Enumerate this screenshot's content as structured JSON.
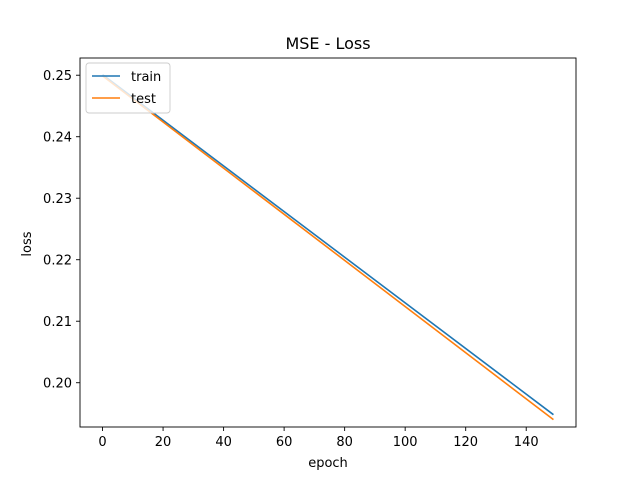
{
  "chart_data": {
    "type": "line",
    "title": "MSE - Loss",
    "xlabel": "epoch",
    "ylabel": "loss",
    "xlim": [
      -7.45,
      156.45
    ],
    "ylim": [
      0.1928,
      0.2528
    ],
    "xticks": [
      0,
      20,
      40,
      60,
      80,
      100,
      120,
      140
    ],
    "yticks": [
      0.2,
      0.21,
      0.22,
      0.23,
      0.24,
      0.25
    ],
    "ytick_labels": [
      "0.20",
      "0.21",
      "0.22",
      "0.23",
      "0.24",
      "0.25"
    ],
    "grid": false,
    "legend_position": "upper left",
    "series": [
      {
        "name": "train",
        "color": "#1f77b4",
        "x": [
          0,
          149
        ],
        "y": [
          0.2501,
          0.1948
        ]
      },
      {
        "name": "test",
        "color": "#ff7f0e",
        "x": [
          0,
          149
        ],
        "y": [
          0.2499,
          0.194
        ]
      }
    ]
  }
}
